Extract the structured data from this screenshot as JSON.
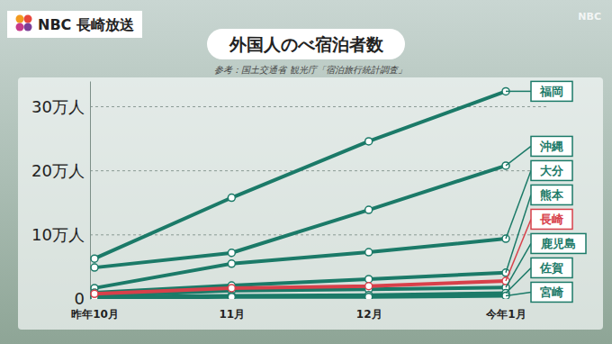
{
  "chart_data": {
    "type": "line",
    "title": "外国人のべ宿泊者数",
    "source": "参考：国土交通省 観光庁「宿泊旅行統計調査」",
    "logo": "NBC 長崎放送",
    "watermark": "NBC",
    "categories": [
      "昨年10月",
      "11月",
      "12月",
      "今年1月"
    ],
    "series": [
      {
        "name": "福岡",
        "color": "#1b7a68",
        "values": [
          6.3,
          15.8,
          24.6,
          32.4
        ]
      },
      {
        "name": "沖縄",
        "color": "#1b7a68",
        "values": [
          4.9,
          7.2,
          13.9,
          20.8
        ]
      },
      {
        "name": "大分",
        "color": "#1b7a68",
        "values": [
          1.7,
          5.5,
          7.3,
          9.4
        ]
      },
      {
        "name": "熊本",
        "color": "#1b7a68",
        "values": [
          1.0,
          2.1,
          3.1,
          4.1
        ]
      },
      {
        "name": "長崎",
        "color": "#d8404a",
        "values": [
          0.8,
          1.7,
          2.0,
          2.8
        ]
      },
      {
        "name": "鹿児島",
        "color": "#1b7a68",
        "values": [
          0.5,
          1.3,
          1.5,
          1.8
        ]
      },
      {
        "name": "佐賀",
        "color": "#1b7a68",
        "values": [
          0.3,
          0.5,
          0.6,
          0.9
        ]
      },
      {
        "name": "宮崎",
        "color": "#1b7a68",
        "values": [
          0.2,
          0.3,
          0.3,
          0.5
        ]
      }
    ],
    "ylim": [
      0,
      34
    ],
    "yticks": [
      0,
      {
        "value": 10,
        "label": "10万人"
      },
      {
        "value": 20,
        "label": "20万人"
      },
      {
        "value": 30,
        "label": "30万人"
      }
    ],
    "grid": true,
    "marker": "circle"
  }
}
